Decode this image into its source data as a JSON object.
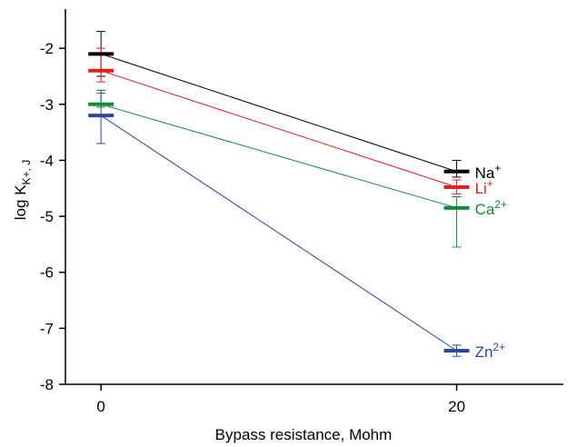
{
  "chart_data": {
    "type": "line",
    "title": "",
    "xlabel": "Bypass resistance, Mohm",
    "ylabel": {
      "main": "log K",
      "sub": "K+, J"
    },
    "x": [
      0,
      20
    ],
    "xticks": [
      "0",
      "20"
    ],
    "xlim": [
      -2,
      26
    ],
    "ylim": [
      -8,
      -1.3
    ],
    "yticks": [
      -2,
      -3,
      -4,
      -5,
      -6,
      -7,
      -8
    ],
    "ytick_labels": [
      "-2",
      "-3",
      "-4",
      "-5",
      "-6",
      "-7",
      "-8"
    ],
    "grid": false,
    "legend": "inline labels at right end of each series",
    "series": [
      {
        "name": "Na",
        "sup": "+",
        "color": "#000000",
        "values": [
          -2.1,
          -4.2
        ],
        "err_low": [
          -2.5,
          -4.3
        ],
        "err_high": [
          -1.7,
          -4.0
        ]
      },
      {
        "name": "Li",
        "sup": "+",
        "color": "#e0201b",
        "values": [
          -2.4,
          -4.48
        ],
        "err_low": [
          -2.6,
          -4.6
        ],
        "err_high": [
          -2.0,
          -4.35
        ]
      },
      {
        "name": "Ca",
        "sup": "2+",
        "color": "#168a3c",
        "values": [
          -3.0,
          -4.85
        ],
        "err_low": [
          -3.05,
          -5.55
        ],
        "err_high": [
          -2.8,
          -4.65
        ]
      },
      {
        "name": "Zn",
        "sup": "2+",
        "color": "#2c47a0",
        "values": [
          -3.2,
          -7.4
        ],
        "err_low": [
          -3.7,
          -7.5
        ],
        "err_high": [
          -2.75,
          -7.3
        ]
      }
    ]
  }
}
